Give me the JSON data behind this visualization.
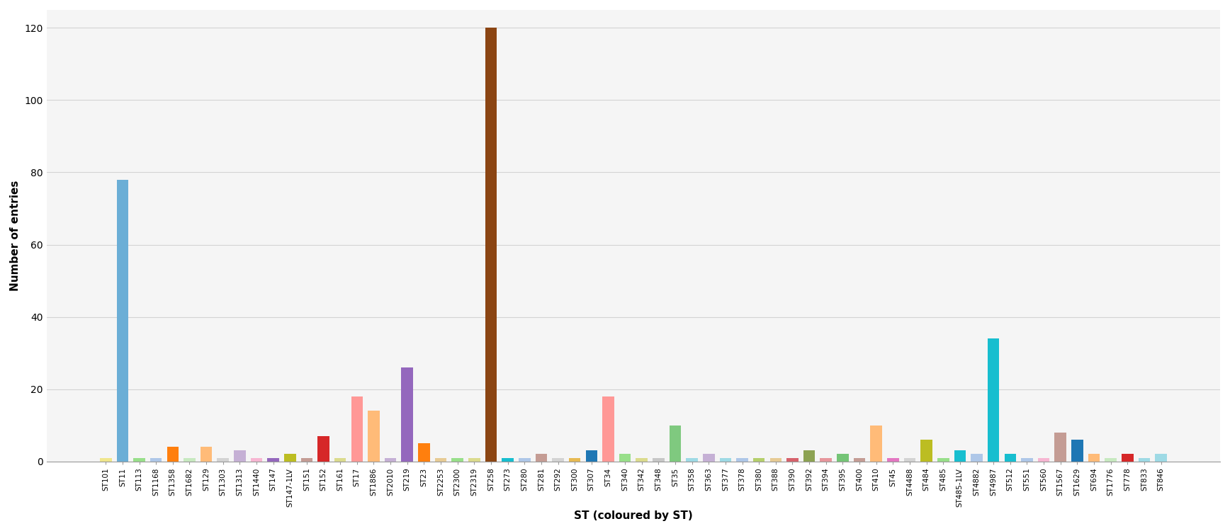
{
  "categories": [
    "ST101",
    "ST11",
    "ST113",
    "ST1168",
    "ST1358",
    "ST1682",
    "ST129",
    "ST1303",
    "ST1313",
    "ST1440",
    "ST147",
    "ST147-1LV",
    "ST151",
    "ST152",
    "ST161",
    "ST17",
    "ST1886",
    "ST2010",
    "ST219",
    "ST23",
    "ST2253",
    "ST2300",
    "ST2319",
    "ST258",
    "ST273",
    "ST280",
    "ST281",
    "ST292",
    "ST300",
    "ST307",
    "ST34",
    "ST340",
    "ST342",
    "ST348",
    "ST35",
    "ST358",
    "ST363",
    "ST377",
    "ST378",
    "ST380",
    "ST388",
    "ST390",
    "ST392",
    "ST394",
    "ST395",
    "ST400",
    "ST410",
    "ST45",
    "ST4488",
    "ST484",
    "ST485",
    "ST485-1LV",
    "ST4882",
    "ST4987",
    "ST512",
    "ST551",
    "ST560",
    "ST1567",
    "ST1629",
    "ST694",
    "ST1776",
    "ST778",
    "ST833",
    "ST846"
  ],
  "values": [
    1,
    78,
    1,
    1,
    4,
    1,
    4,
    1,
    3,
    1,
    1,
    2,
    1,
    7,
    1,
    18,
    14,
    1,
    26,
    5,
    1,
    1,
    1,
    120,
    1,
    1,
    2,
    1,
    1,
    3,
    18,
    2,
    1,
    1,
    10,
    1,
    2,
    1,
    1,
    1,
    1,
    1,
    3,
    1,
    2,
    1,
    10,
    1,
    1,
    6,
    1,
    3,
    2,
    34,
    2,
    1,
    1,
    8,
    6,
    2,
    1,
    2,
    1,
    2
  ],
  "colors": [
    "#f0e68c",
    "#6baed6",
    "#98df8a",
    "#aec7e8",
    "#ff7f0e",
    "#c7e9c0",
    "#ffbb78",
    "#d3d3d3",
    "#c5b0d5",
    "#f7b6d2",
    "#9467bd",
    "#bcbd22",
    "#c49c94",
    "#d62728",
    "#dbdb8d",
    "#ff9896",
    "#ffbb78",
    "#c5b0d5",
    "#9467bd",
    "#ff7f0e",
    "#e7cb94",
    "#98df8a",
    "#dbdb8d",
    "#8b4513",
    "#17becf",
    "#aec7e8",
    "#c49c94",
    "#d3d3d3",
    "#e7ba52",
    "#1f77b4",
    "#ff9896",
    "#98df8a",
    "#dbdb8d",
    "#c7c7c7",
    "#7fc97f",
    "#9edae5",
    "#c5b0d5",
    "#9edae5",
    "#aec7e8",
    "#b5cf6b",
    "#e7cb94",
    "#d6616b",
    "#8ca252",
    "#e7969c",
    "#74c476",
    "#c49c94",
    "#ffbb78",
    "#e377c2",
    "#d3d3d3",
    "#bcbd22",
    "#98df8a",
    "#17becf",
    "#aec7e8",
    "#17becf",
    "#17becf",
    "#aec7e8",
    "#f7b6d2",
    "#c49c94",
    "#1f77b4",
    "#ffbb78",
    "#c7e9c0",
    "#d62728",
    "#9edae5",
    "#9edae5"
  ],
  "ylabel": "Number of entries",
  "xlabel": "ST (coloured by ST)",
  "ylim": [
    0,
    125
  ],
  "yticks": [
    0,
    20,
    40,
    60,
    80,
    100,
    120
  ],
  "background_color": "#ffffff",
  "grid_color": "#d3d3d3",
  "plot_area_color": "#f5f5f5"
}
